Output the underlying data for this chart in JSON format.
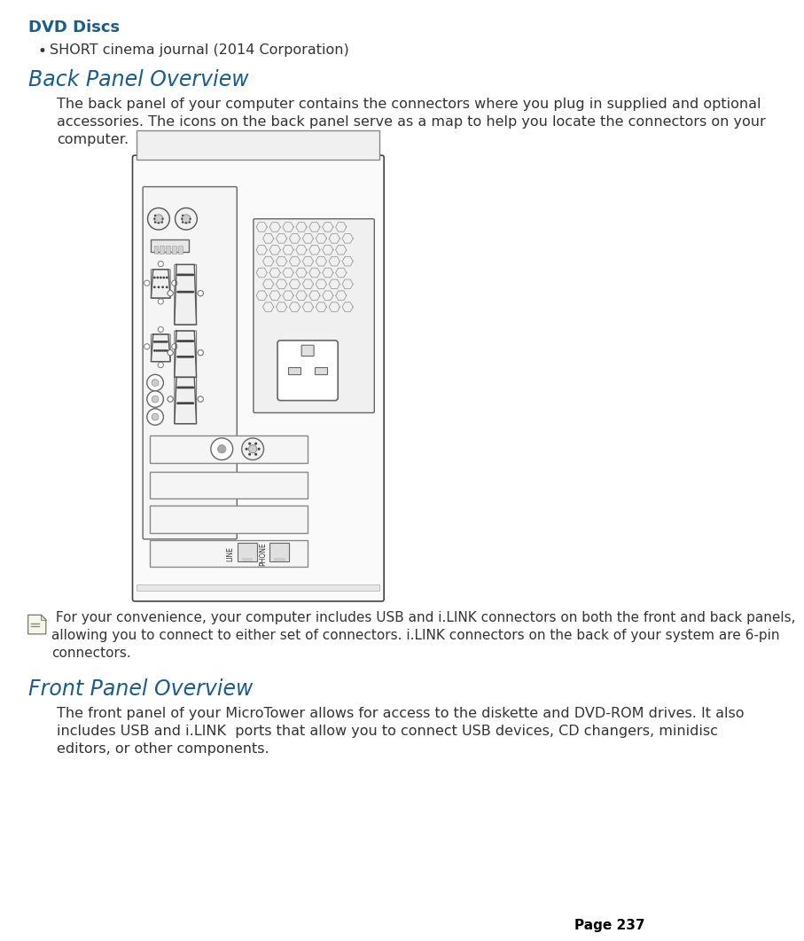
{
  "bg_color": "#ffffff",
  "title_dvd": "DVD Discs",
  "bullet_text": "SHORT cinema journal (2014 Corporation)",
  "heading_back": "Back Panel Overview",
  "para_back": "The back panel of your computer contains the connectors where you plug in supplied and optional\naccessories. The icons on the back panel serve as a map to help you locate the connectors on your\ncomputer.",
  "note_text": " For your convenience, your computer includes USB and i.LINK connectors on both the front and back panels,\nallowing you to connect to either set of connectors. i.LINK connectors on the back of your system are 6-pin\nconnectors.",
  "heading_front": "Front Panel Overview",
  "para_front": "The front panel of your MicroTower allows for access to the diskette and DVD-ROM drives. It also\nincludes USB and i.LINK  ports that allow you to connect USB devices, CD changers, minidisc\neditors, or other components.",
  "page_text": "Page 237",
  "dvd_color": "#1a5c8a",
  "body_color": "#333333",
  "line_color": "#aaaaaa",
  "diagram_edge": "#555555"
}
